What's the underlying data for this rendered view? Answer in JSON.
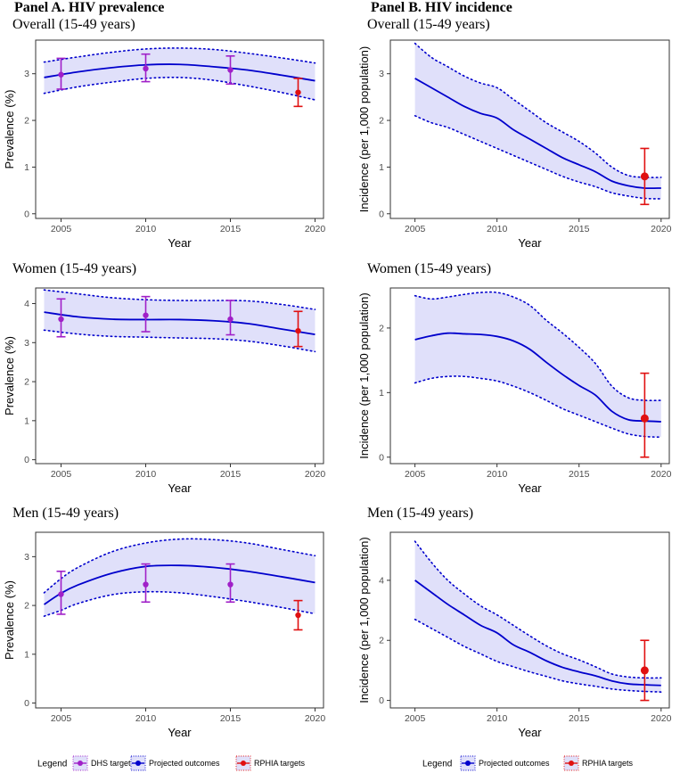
{
  "panel_titles": {
    "a": "Panel A. HIV prevalence",
    "b": "Panel B. HIV incidence"
  },
  "colors": {
    "band_fill": "#e0e0fa",
    "projection_line": "#0000cc",
    "dhs": "#a020c8",
    "rphia": "#e01010",
    "frame": "#333333"
  },
  "legends": {
    "a": {
      "title": "Legend",
      "items": [
        {
          "label": "DHS targets",
          "color": "#a020c8"
        },
        {
          "label": "Projected outcomes",
          "color": "#0000cc"
        },
        {
          "label": "RPHIA targets",
          "color": "#e01010"
        }
      ]
    },
    "b": {
      "title": "Legend",
      "items": [
        {
          "label": "Projected outcomes",
          "color": "#0000cc"
        },
        {
          "label": "RPHIA targets",
          "color": "#e01010"
        }
      ]
    }
  },
  "chart_data": [
    {
      "id": "prev-overall",
      "type": "line",
      "panel": "a",
      "title": "Overall (15-49 years)",
      "xlabel": "Year",
      "ylabel": "Prevalence (%)",
      "xlim": [
        2003.5,
        2020.5
      ],
      "ylim": [
        -0.1,
        3.72
      ],
      "xticks": [
        2005,
        2010,
        2015,
        2020
      ],
      "yticks": [
        0,
        1,
        2,
        3
      ],
      "projection": {
        "x": [
          2004,
          2006,
          2008,
          2010,
          2012,
          2014,
          2016,
          2018,
          2020
        ],
        "mean": [
          2.92,
          3.04,
          3.13,
          3.19,
          3.2,
          3.15,
          3.08,
          2.97,
          2.85
        ],
        "lower": [
          2.58,
          2.72,
          2.82,
          2.9,
          2.92,
          2.86,
          2.74,
          2.6,
          2.44
        ],
        "upper": [
          3.25,
          3.36,
          3.46,
          3.53,
          3.55,
          3.52,
          3.44,
          3.34,
          3.23
        ]
      },
      "dhs": [
        {
          "x": 2005,
          "y": 2.98,
          "lo": 2.67,
          "hi": 3.33
        },
        {
          "x": 2010,
          "y": 3.11,
          "lo": 2.83,
          "hi": 3.42
        },
        {
          "x": 2015,
          "y": 3.08,
          "lo": 2.78,
          "hi": 3.38
        }
      ],
      "rphia": [
        {
          "x": 2019,
          "y": 2.6,
          "lo": 2.3,
          "hi": 2.9
        }
      ]
    },
    {
      "id": "inc-overall",
      "type": "line",
      "panel": "b",
      "title": "Overall (15-49 years)",
      "xlabel": "Year",
      "ylabel": "Incidence (per 1,000 population)",
      "xlim": [
        2003.5,
        2020.5
      ],
      "ylim": [
        -0.1,
        3.72
      ],
      "xticks": [
        2005,
        2010,
        2015,
        2020
      ],
      "yticks": [
        0,
        1,
        2,
        3
      ],
      "projection": {
        "x": [
          2005,
          2006,
          2007,
          2008,
          2009,
          2010,
          2011,
          2012,
          2013,
          2014,
          2015,
          2016,
          2017,
          2018,
          2019,
          2020
        ],
        "mean": [
          2.9,
          2.7,
          2.5,
          2.3,
          2.15,
          2.05,
          1.8,
          1.6,
          1.4,
          1.2,
          1.05,
          0.9,
          0.7,
          0.6,
          0.55,
          0.55
        ],
        "lower": [
          2.1,
          1.95,
          1.85,
          1.7,
          1.55,
          1.4,
          1.25,
          1.1,
          0.95,
          0.8,
          0.68,
          0.58,
          0.45,
          0.38,
          0.33,
          0.32
        ],
        "upper": [
          3.65,
          3.35,
          3.15,
          2.95,
          2.8,
          2.7,
          2.45,
          2.2,
          1.95,
          1.75,
          1.55,
          1.3,
          1.0,
          0.82,
          0.78,
          0.78
        ]
      },
      "dhs": [],
      "rphia": [
        {
          "x": 2019,
          "y": 0.8,
          "lo": 0.2,
          "hi": 1.4
        }
      ]
    },
    {
      "id": "prev-women",
      "type": "line",
      "panel": "a",
      "title": "Women (15-49 years)",
      "xlabel": "Year",
      "ylabel": "Prevalence (%)",
      "xlim": [
        2003.5,
        2020.5
      ],
      "ylim": [
        -0.1,
        4.4
      ],
      "xticks": [
        2005,
        2010,
        2015,
        2020
      ],
      "yticks": [
        0,
        1,
        2,
        3,
        4
      ],
      "projection": {
        "x": [
          2004,
          2006,
          2008,
          2010,
          2012,
          2014,
          2016,
          2018,
          2020
        ],
        "mean": [
          3.78,
          3.66,
          3.6,
          3.59,
          3.59,
          3.56,
          3.49,
          3.35,
          3.21
        ],
        "lower": [
          3.32,
          3.22,
          3.16,
          3.14,
          3.12,
          3.1,
          3.04,
          2.92,
          2.77
        ],
        "upper": [
          4.35,
          4.25,
          4.15,
          4.1,
          4.08,
          4.08,
          4.07,
          3.98,
          3.85
        ]
      },
      "dhs": [
        {
          "x": 2005,
          "y": 3.6,
          "lo": 3.15,
          "hi": 4.12
        },
        {
          "x": 2010,
          "y": 3.7,
          "lo": 3.28,
          "hi": 4.18
        },
        {
          "x": 2015,
          "y": 3.6,
          "lo": 3.2,
          "hi": 4.08
        }
      ],
      "rphia": [
        {
          "x": 2019,
          "y": 3.3,
          "lo": 2.9,
          "hi": 3.8
        }
      ]
    },
    {
      "id": "inc-women",
      "type": "line",
      "panel": "b",
      "title": "Women (15-49 years)",
      "xlabel": "Year",
      "ylabel": "Incidence (per 1,000 population)",
      "xlim": [
        2003.5,
        2020.5
      ],
      "ylim": [
        -0.1,
        2.62
      ],
      "xticks": [
        2005,
        2010,
        2015,
        2020
      ],
      "yticks": [
        0,
        1,
        2
      ],
      "projection": {
        "x": [
          2005,
          2006,
          2007,
          2008,
          2009,
          2010,
          2011,
          2012,
          2013,
          2014,
          2015,
          2016,
          2017,
          2018,
          2019,
          2020
        ],
        "mean": [
          1.82,
          1.88,
          1.92,
          1.91,
          1.9,
          1.87,
          1.8,
          1.67,
          1.47,
          1.28,
          1.11,
          0.96,
          0.71,
          0.58,
          0.56,
          0.55
        ],
        "lower": [
          1.15,
          1.22,
          1.25,
          1.25,
          1.22,
          1.18,
          1.1,
          1.0,
          0.88,
          0.75,
          0.65,
          0.55,
          0.45,
          0.36,
          0.32,
          0.31
        ],
        "upper": [
          2.5,
          2.45,
          2.48,
          2.52,
          2.55,
          2.55,
          2.48,
          2.35,
          2.12,
          1.92,
          1.7,
          1.45,
          1.1,
          0.92,
          0.88,
          0.88
        ]
      },
      "dhs": [],
      "rphia": [
        {
          "x": 2019,
          "y": 0.6,
          "lo": 0.0,
          "hi": 1.3
        }
      ]
    },
    {
      "id": "prev-men",
      "type": "line",
      "panel": "a",
      "title": "Men (15-49 years)",
      "xlabel": "Year",
      "ylabel": "Prevalence (%)",
      "xlim": [
        2003.5,
        2020.5
      ],
      "ylim": [
        -0.1,
        3.5
      ],
      "xticks": [
        2005,
        2010,
        2015,
        2020
      ],
      "yticks": [
        0,
        1,
        2,
        3
      ],
      "projection": {
        "x": [
          2004,
          2005,
          2006,
          2008,
          2010,
          2012,
          2014,
          2016,
          2018,
          2020
        ],
        "mean": [
          2.02,
          2.25,
          2.42,
          2.66,
          2.8,
          2.82,
          2.78,
          2.7,
          2.59,
          2.47
        ],
        "lower": [
          1.78,
          1.9,
          2.04,
          2.22,
          2.28,
          2.26,
          2.18,
          2.08,
          1.96,
          1.83
        ],
        "upper": [
          2.26,
          2.55,
          2.78,
          3.1,
          3.28,
          3.36,
          3.35,
          3.28,
          3.15,
          3.02
        ]
      },
      "dhs": [
        {
          "x": 2005,
          "y": 2.23,
          "lo": 1.82,
          "hi": 2.7
        },
        {
          "x": 2010,
          "y": 2.43,
          "lo": 2.07,
          "hi": 2.85
        },
        {
          "x": 2015,
          "y": 2.43,
          "lo": 2.07,
          "hi": 2.85
        }
      ],
      "rphia": [
        {
          "x": 2019,
          "y": 1.8,
          "lo": 1.5,
          "hi": 2.1
        }
      ]
    },
    {
      "id": "inc-men",
      "type": "line",
      "panel": "b",
      "title": "Men (15-49 years)",
      "xlabel": "Year",
      "ylabel": "Incidence (per 1,000 population)",
      "xlim": [
        2003.5,
        2020.5
      ],
      "ylim": [
        -0.25,
        5.6
      ],
      "xticks": [
        2005,
        2010,
        2015,
        2020
      ],
      "yticks": [
        0,
        2,
        4
      ],
      "projection": {
        "x": [
          2005,
          2006,
          2007,
          2008,
          2009,
          2010,
          2011,
          2012,
          2013,
          2014,
          2015,
          2016,
          2017,
          2018,
          2019,
          2020
        ],
        "mean": [
          4.0,
          3.6,
          3.2,
          2.85,
          2.5,
          2.25,
          1.85,
          1.6,
          1.32,
          1.1,
          0.95,
          0.82,
          0.65,
          0.55,
          0.52,
          0.5
        ],
        "lower": [
          2.7,
          2.4,
          2.1,
          1.8,
          1.55,
          1.3,
          1.12,
          0.95,
          0.8,
          0.65,
          0.55,
          0.47,
          0.38,
          0.33,
          0.3,
          0.28
        ],
        "upper": [
          5.3,
          4.6,
          4.0,
          3.55,
          3.15,
          2.85,
          2.5,
          2.15,
          1.82,
          1.55,
          1.35,
          1.12,
          0.88,
          0.78,
          0.75,
          0.75
        ]
      },
      "dhs": [],
      "rphia": [
        {
          "x": 2019,
          "y": 1.0,
          "lo": 0.0,
          "hi": 2.0
        }
      ]
    }
  ]
}
